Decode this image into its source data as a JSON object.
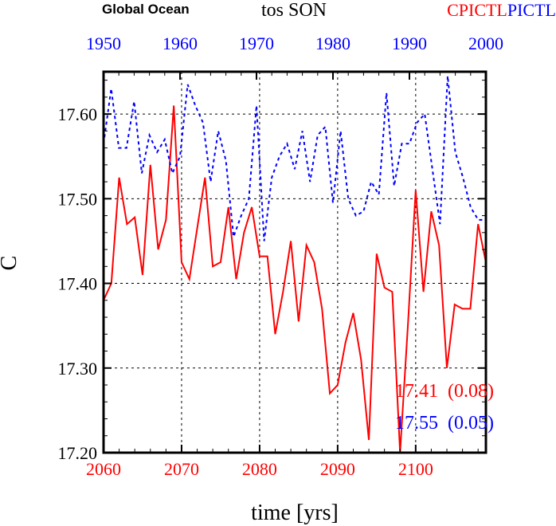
{
  "titles": {
    "left": "Global Ocean",
    "center": "tos SON",
    "right_red": "CPICTL",
    "right_blue": "PICTL"
  },
  "colors": {
    "red": "#ff0000",
    "blue": "#0000ff"
  },
  "annotations": {
    "red_stat": "17.41  (0.08)",
    "blue_stat": "17.55  (0.05)"
  },
  "chart_data": {
    "type": "line",
    "title": "tos SON",
    "xlabel": "time [yrs]",
    "ylabel": "C",
    "ylim": [
      17.2,
      17.65
    ],
    "yticks": [
      "17.20",
      "17.30",
      "17.40",
      "17.50",
      "17.60"
    ],
    "yticks_values": [
      17.2,
      17.3,
      17.4,
      17.5,
      17.6
    ],
    "x_bottom": {
      "range": [
        2060,
        2109
      ],
      "ticks": [
        "2060",
        "2070",
        "2080",
        "2090",
        "2100"
      ]
    },
    "x_top": {
      "range": [
        1950,
        2000
      ],
      "ticks": [
        "1950",
        "1960",
        "1970",
        "1980",
        "1990",
        "2000"
      ]
    },
    "grid": true,
    "series": [
      {
        "name": "CPICTL",
        "color": "#ff0000",
        "style": "solid",
        "axis": "bottom",
        "x_start": 2060,
        "values": [
          17.38,
          17.4,
          17.525,
          17.47,
          17.478,
          17.41,
          17.54,
          17.44,
          17.475,
          17.61,
          17.425,
          17.405,
          17.465,
          17.525,
          17.42,
          17.425,
          17.49,
          17.405,
          17.46,
          17.49,
          17.432,
          17.432,
          17.34,
          17.39,
          17.45,
          17.355,
          17.445,
          17.425,
          17.37,
          17.27,
          17.28,
          17.33,
          17.365,
          17.31,
          17.215,
          17.435,
          17.395,
          17.39,
          17.2,
          17.35,
          17.51,
          17.39,
          17.485,
          17.445,
          17.3,
          17.375,
          17.37,
          17.37,
          17.47,
          17.425
        ]
      },
      {
        "name": "PICTL",
        "color": "#0000ff",
        "style": "dashed",
        "axis": "top",
        "x_start": 1950,
        "values": [
          17.565,
          17.63,
          17.56,
          17.56,
          17.615,
          17.53,
          17.575,
          17.555,
          17.57,
          17.53,
          17.55,
          17.635,
          17.61,
          17.59,
          17.52,
          17.58,
          17.545,
          17.455,
          17.48,
          17.5,
          17.61,
          17.45,
          17.525,
          17.55,
          17.565,
          17.535,
          17.58,
          17.52,
          17.575,
          17.585,
          17.495,
          17.58,
          17.5,
          17.48,
          17.485,
          17.52,
          17.505,
          17.625,
          17.515,
          17.565,
          17.565,
          17.59,
          17.6,
          17.535,
          17.47,
          17.645,
          17.555,
          17.525,
          17.49,
          17.475,
          17.475
        ]
      }
    ]
  }
}
